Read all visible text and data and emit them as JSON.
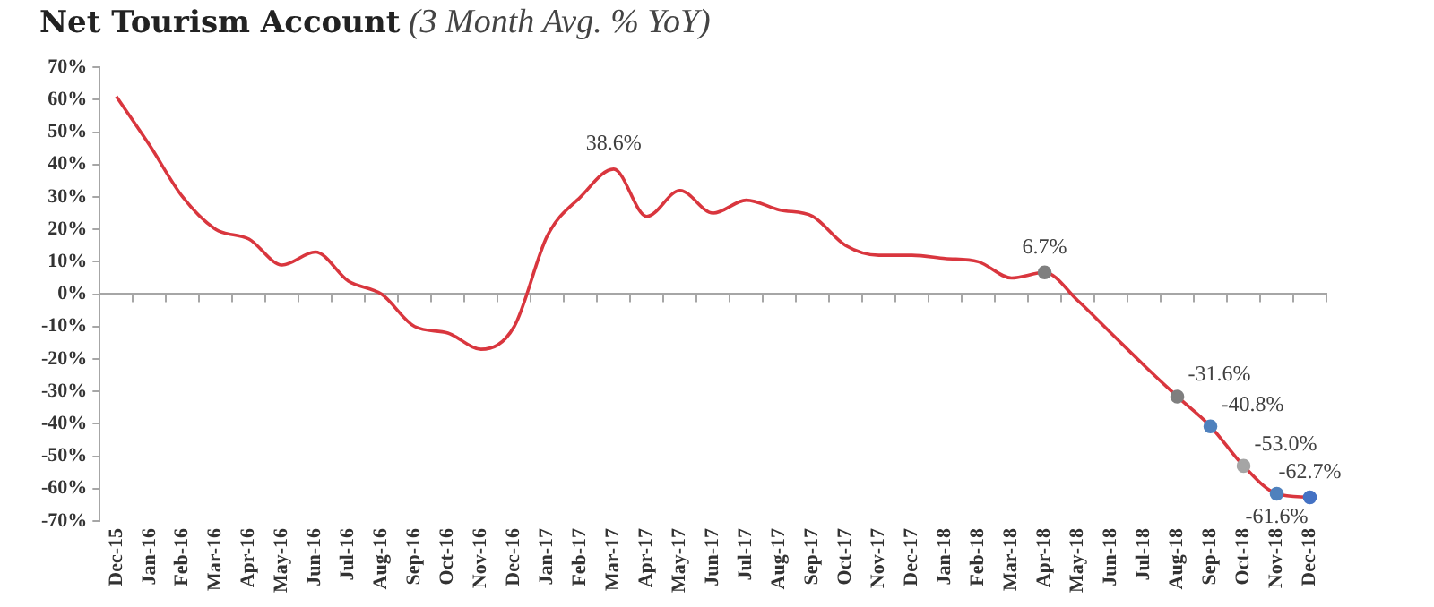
{
  "chart_data": {
    "type": "line",
    "title": "Net Tourism Account",
    "subtitle": "(3 Month Avg. % YoY)",
    "categories": [
      "Dec-15",
      "Jan-16",
      "Feb-16",
      "Mar-16",
      "Apr-16",
      "May-16",
      "Jun-16",
      "Jul-16",
      "Aug-16",
      "Sep-16",
      "Oct-16",
      "Nov-16",
      "Dec-16",
      "Jan-17",
      "Feb-17",
      "Mar-17",
      "Apr-17",
      "May-17",
      "Jun-17",
      "Jul-17",
      "Aug-17",
      "Sep-17",
      "Oct-17",
      "Nov-17",
      "Dec-17",
      "Jan-18",
      "Feb-18",
      "Mar-18",
      "Apr-18",
      "May-18",
      "Jun-18",
      "Jul-18",
      "Aug-18",
      "Sep-18",
      "Oct-18",
      "Nov-18",
      "Dec-18"
    ],
    "series": [
      {
        "color": "#d9363e",
        "values": [
          61,
          46,
          30,
          20,
          17,
          9,
          13,
          4,
          0,
          -10,
          -12,
          -17,
          -10,
          18,
          30,
          38.6,
          24,
          32,
          25,
          29,
          26,
          24,
          15,
          12,
          12,
          11,
          10,
          5,
          6.7,
          -2,
          -12,
          -22,
          -31.6,
          -40.8,
          -53.0,
          -61.6,
          -62.7
        ],
        "value_labels": [
          null,
          null,
          null,
          null,
          null,
          null,
          null,
          null,
          null,
          null,
          null,
          null,
          null,
          null,
          null,
          "38.6%",
          null,
          null,
          null,
          null,
          null,
          null,
          null,
          null,
          null,
          null,
          null,
          null,
          "6.7%",
          null,
          null,
          null,
          "-31.6%",
          "-40.8%",
          "-53.0%",
          "-61.6%",
          "-62.7%"
        ],
        "colors": [
          null,
          null,
          null,
          null,
          null,
          null,
          null,
          null,
          null,
          null,
          null,
          null,
          null,
          null,
          null,
          null,
          null,
          null,
          null,
          null,
          null,
          null,
          null,
          null,
          null,
          null,
          null,
          null,
          "#7f7f7f",
          null,
          null,
          null,
          "#7f7f7f",
          "#4f81bd",
          "#a5a5a5",
          "#4f81bd",
          "#4472c4"
        ]
      }
    ],
    "ylim": [
      -70,
      70
    ],
    "yticks": [
      {
        "value": -70,
        "label": "-70%"
      },
      {
        "value": -60,
        "label": "-60%"
      },
      {
        "value": -50,
        "label": "-50%"
      },
      {
        "value": -40,
        "label": "-40%"
      },
      {
        "value": -30,
        "label": "-30%"
      },
      {
        "value": -20,
        "label": "-20%"
      },
      {
        "value": -10,
        "label": "-10%"
      },
      {
        "value": 0,
        "label": "0%"
      },
      {
        "value": 10,
        "label": "10%"
      },
      {
        "value": 20,
        "label": "20%"
      },
      {
        "value": 30,
        "label": "30%"
      },
      {
        "value": 40,
        "label": "40%"
      },
      {
        "value": 50,
        "label": "50%"
      },
      {
        "value": 60,
        "label": "60%"
      },
      {
        "value": 70,
        "label": "70%"
      }
    ],
    "legend": false,
    "line_style": "solid"
  }
}
